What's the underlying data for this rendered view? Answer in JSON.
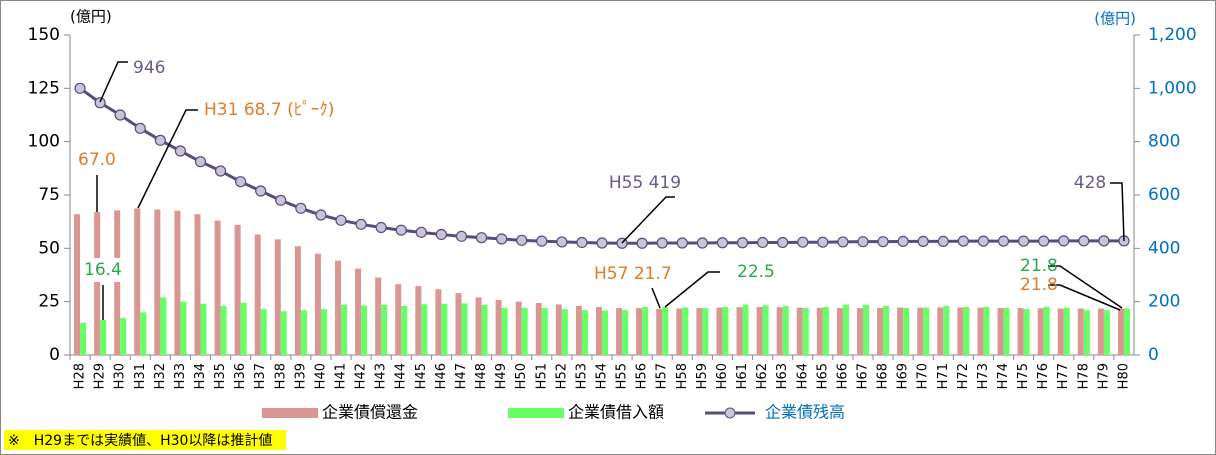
{
  "chart_data": {
    "type": "bar",
    "y_unit": "(億円)",
    "y2_unit": "(億円)",
    "categories": [
      "H28",
      "H29",
      "H30",
      "H31",
      "H32",
      "H33",
      "H34",
      "H35",
      "H36",
      "H37",
      "H38",
      "H39",
      "H40",
      "H41",
      "H42",
      "H43",
      "H44",
      "H45",
      "H46",
      "H47",
      "H48",
      "H49",
      "H50",
      "H51",
      "H52",
      "H53",
      "H54",
      "H55",
      "H56",
      "H57",
      "H58",
      "H59",
      "H60",
      "H61",
      "H62",
      "H63",
      "H64",
      "H65",
      "H66",
      "H67",
      "H68",
      "H69",
      "H70",
      "H71",
      "H72",
      "H73",
      "H74",
      "H75",
      "H76",
      "H77",
      "H78",
      "H79",
      "H80"
    ],
    "series": [
      {
        "name": "企業債償還金",
        "color": "#d99694",
        "values": [
          66,
          67.0,
          67.8,
          68.7,
          68.2,
          67.6,
          66,
          63,
          61,
          56.5,
          54.2,
          51,
          47.5,
          44.2,
          40.5,
          36.3,
          33.2,
          32.3,
          30.8,
          29,
          27,
          25.8,
          25,
          24.4,
          23.7,
          23,
          22.5,
          22,
          22,
          21.7,
          21.8,
          22,
          22.2,
          22.4,
          22.5,
          22.4,
          22.2,
          22.1,
          22,
          22,
          22.1,
          22.2,
          22.2,
          22.3,
          22.3,
          22.2,
          22,
          22,
          21.9,
          21.8,
          21.8,
          21.8,
          21.8
        ]
      },
      {
        "name": "企業債借入額",
        "color": "#66ff66",
        "values": [
          15,
          16.4,
          17.3,
          20,
          27,
          25,
          24,
          23,
          24.5,
          21.5,
          20.5,
          21,
          21.5,
          23.5,
          23.2,
          23.5,
          23,
          23.8,
          24,
          24.2,
          23.5,
          22,
          22,
          22,
          21.5,
          21,
          20.8,
          21,
          22.5,
          22.5,
          22.3,
          22,
          22.5,
          23.5,
          23.3,
          23,
          22,
          22.5,
          23.6,
          23.5,
          23,
          22,
          22.2,
          23,
          22.5,
          22.5,
          22,
          21.5,
          22.5,
          22.2,
          21,
          21,
          21.8
        ]
      },
      {
        "name": "企業債残高",
        "type": "line",
        "axis": "y2",
        "color": "#5a4b7d",
        "marker_color": "#c9c3dc",
        "legend_text_color": "#0070c0",
        "values": [
          1000,
          946,
          900,
          850,
          805,
          765,
          725,
          690,
          650,
          615,
          580,
          550,
          525,
          505,
          490,
          478,
          468,
          460,
          452,
          445,
          440,
          435,
          430,
          427,
          424,
          422,
          420,
          419,
          419,
          420,
          420,
          420,
          421,
          421,
          422,
          422,
          423,
          423,
          424,
          425,
          425,
          426,
          426,
          426,
          427,
          427,
          427,
          427,
          427,
          428,
          428,
          428,
          428
        ]
      }
    ],
    "ylim": [
      0,
      150
    ],
    "yticks": [
      0,
      25,
      50,
      75,
      100,
      125,
      150
    ],
    "y2lim": [
      0,
      1200
    ],
    "y2ticks": [
      0,
      200,
      400,
      600,
      800,
      {
        "value": 1000,
        "label": "1,000"
      },
      {
        "value": 1200,
        "label": "1,200"
      }
    ],
    "y2_color": "#0070c0",
    "grid": false,
    "legend": "bottom",
    "annotations": [
      "946",
      "H31 68.7 (ﾋﾟｰｸ)",
      "67.0",
      "16.4",
      "H55 419",
      "H57 21.7",
      "22.5",
      "428",
      "21.8",
      "21.8"
    ],
    "note": "※　H29までは実績値、H30以降は推計値"
  }
}
